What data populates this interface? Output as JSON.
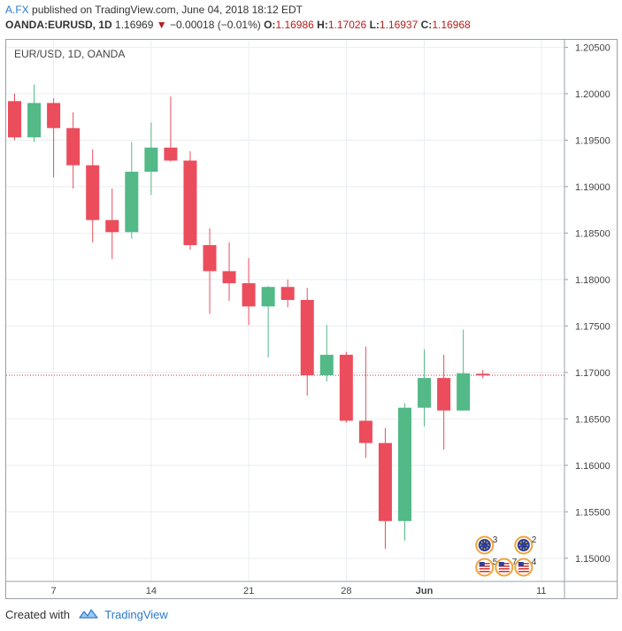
{
  "header": {
    "author": "A.FX",
    "published": "published on TradingView.com, June 04, 2018 18:12 EDT",
    "symbol": "OANDA:EURUSD, 1D",
    "last": "1.16969",
    "change": "−0.00018 (−0.01%)",
    "o_label": "O:",
    "o": "1.16986",
    "h_label": "H:",
    "h": "1.17026",
    "l_label": "L:",
    "l": "1.16937",
    "c_label": "C:",
    "c": "1.16968"
  },
  "footer": {
    "created_with": "Created with",
    "brand": "TradingView"
  },
  "colors": {
    "up": "#53b987",
    "down": "#eb4d5c",
    "grid": "#e9edf1",
    "price_line": "#d32f2f"
  },
  "chart_data": {
    "type": "candlestick",
    "title": "EUR/USD, 1D, OANDA",
    "y_ticks": [
      "1.20500",
      "1.20000",
      "1.19500",
      "1.19000",
      "1.18500",
      "1.18000",
      "1.17500",
      "1.17000",
      "1.16500",
      "1.16000",
      "1.15500",
      "1.15000"
    ],
    "x_ticks": [
      {
        "label": "7",
        "slot": 2
      },
      {
        "label": "14",
        "slot": 7
      },
      {
        "label": "21",
        "slot": 12
      },
      {
        "label": "28",
        "slot": 17
      },
      {
        "label": "Jun",
        "slot": 21
      },
      {
        "label": "11",
        "slot": 27
      }
    ],
    "ylim": [
      1.1475,
      1.2058
    ],
    "current_price": 1.16969,
    "candles": [
      {
        "o": 1.1992,
        "h": 1.2,
        "l": 1.195,
        "c": 1.1953
      },
      {
        "o": 1.1953,
        "h": 1.201,
        "l": 1.1948,
        "c": 1.199
      },
      {
        "o": 1.199,
        "h": 1.1995,
        "l": 1.191,
        "c": 1.1963
      },
      {
        "o": 1.1963,
        "h": 1.198,
        "l": 1.1898,
        "c": 1.1923
      },
      {
        "o": 1.1923,
        "h": 1.194,
        "l": 1.184,
        "c": 1.1864
      },
      {
        "o": 1.1864,
        "h": 1.1898,
        "l": 1.1822,
        "c": 1.1851
      },
      {
        "o": 1.1851,
        "h": 1.1948,
        "l": 1.1844,
        "c": 1.1916
      },
      {
        "o": 1.1916,
        "h": 1.1969,
        "l": 1.1891,
        "c": 1.1942
      },
      {
        "o": 1.1942,
        "h": 1.1997,
        "l": 1.1927,
        "c": 1.1928
      },
      {
        "o": 1.1928,
        "h": 1.1938,
        "l": 1.1832,
        "c": 1.1837
      },
      {
        "o": 1.1837,
        "h": 1.1855,
        "l": 1.1763,
        "c": 1.1809
      },
      {
        "o": 1.1809,
        "h": 1.184,
        "l": 1.1777,
        "c": 1.1796
      },
      {
        "o": 1.1796,
        "h": 1.1823,
        "l": 1.1751,
        "c": 1.1771
      },
      {
        "o": 1.1771,
        "h": 1.1793,
        "l": 1.1716,
        "c": 1.1792
      },
      {
        "o": 1.1792,
        "h": 1.18,
        "l": 1.177,
        "c": 1.1778
      },
      {
        "o": 1.1778,
        "h": 1.1791,
        "l": 1.1675,
        "c": 1.1697
      },
      {
        "o": 1.1697,
        "h": 1.1751,
        "l": 1.169,
        "c": 1.1719
      },
      {
        "o": 1.1719,
        "h": 1.1722,
        "l": 1.1646,
        "c": 1.1648
      },
      {
        "o": 1.1648,
        "h": 1.1728,
        "l": 1.1608,
        "c": 1.1624
      },
      {
        "o": 1.1624,
        "h": 1.164,
        "l": 1.151,
        "c": 1.154
      },
      {
        "o": 1.154,
        "h": 1.1667,
        "l": 1.1519,
        "c": 1.1662
      },
      {
        "o": 1.1662,
        "h": 1.1725,
        "l": 1.1642,
        "c": 1.1694
      },
      {
        "o": 1.1694,
        "h": 1.1719,
        "l": 1.1617,
        "c": 1.1659
      },
      {
        "o": 1.1659,
        "h": 1.1746,
        "l": 1.1659,
        "c": 1.1699
      },
      {
        "o": 1.16986,
        "h": 1.17026,
        "l": 1.16937,
        "c": 1.16968
      }
    ],
    "events": [
      {
        "slot": 24,
        "row": 0,
        "kind": "eu",
        "count": "3"
      },
      {
        "slot": 26,
        "row": 0,
        "kind": "eu",
        "count": "2"
      },
      {
        "slot": 24,
        "row": 1,
        "kind": "us",
        "count": "5"
      },
      {
        "slot": 25,
        "row": 1,
        "kind": "us",
        "count": "7"
      },
      {
        "slot": 26,
        "row": 1,
        "kind": "us",
        "count": "4"
      }
    ]
  }
}
